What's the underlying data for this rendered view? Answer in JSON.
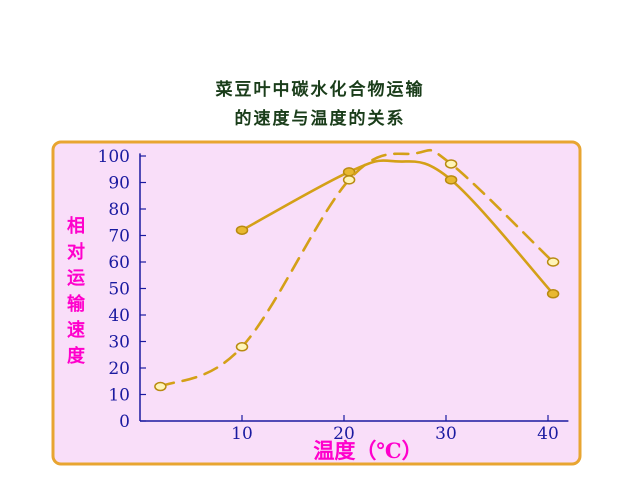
{
  "chart_data": {
    "type": "line",
    "title_lines": [
      "菜豆叶中碳水化合物运输",
      "的速度与温度的关系"
    ],
    "ylabel": "相对运输速度",
    "xlabel": "温度（℃）",
    "xlim": [
      0,
      42
    ],
    "ylim": [
      0,
      100
    ],
    "x_ticks": [
      10,
      20,
      30,
      40
    ],
    "y_ticks": [
      0,
      10,
      20,
      30,
      40,
      50,
      60,
      70,
      80,
      90,
      100
    ],
    "grid": false,
    "series": [
      {
        "style": "solid",
        "color": "#d4a017",
        "marker_fill": "#e8b830",
        "points": [
          {
            "x": 10,
            "y": 72
          },
          {
            "x": 20.5,
            "y": 94
          },
          {
            "x": 30.5,
            "y": 91
          },
          {
            "x": 40.5,
            "y": 48
          }
        ],
        "peak": {
          "x": 25,
          "y": 98
        }
      },
      {
        "style": "dashed",
        "color": "#d4a017",
        "marker_fill": "#fff5b8",
        "points": [
          {
            "x": 2,
            "y": 13
          },
          {
            "x": 10,
            "y": 28
          },
          {
            "x": 20.5,
            "y": 91
          },
          {
            "x": 30.5,
            "y": 97
          },
          {
            "x": 40.5,
            "y": 60
          }
        ],
        "peak": {
          "x": 27,
          "y": 101
        }
      }
    ]
  },
  "colors": {
    "title": "#1a3d1a",
    "axis_text": "#1a1aa0",
    "ylabel": "#ff00cc",
    "xlabel": "#ff00cc",
    "plot_bg": "#f9def9",
    "plot_border": "#e8a531",
    "line": "#d4a017"
  }
}
